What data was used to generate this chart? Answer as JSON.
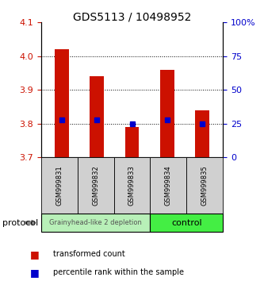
{
  "title": "GDS5113 / 10498952",
  "samples": [
    "GSM999831",
    "GSM999832",
    "GSM999833",
    "GSM999834",
    "GSM999835"
  ],
  "red_values": [
    4.02,
    3.94,
    3.79,
    3.96,
    3.84
  ],
  "blue_values": [
    3.812,
    3.812,
    3.8,
    3.812,
    3.8
  ],
  "bar_bottom": 3.7,
  "ylim_left": [
    3.7,
    4.1
  ],
  "ylim_right": [
    0,
    100
  ],
  "yticks_left": [
    3.7,
    3.8,
    3.9,
    4.0,
    4.1
  ],
  "yticks_right": [
    0,
    25,
    50,
    75,
    100
  ],
  "ytick_labels_right": [
    "0",
    "25",
    "50",
    "75",
    "100%"
  ],
  "bar_color": "#cc1100",
  "marker_color": "#0000cc",
  "groups": [
    {
      "label": "Grainyhead-like 2 depletion",
      "n_samples": 3,
      "color": "#b8f0b8"
    },
    {
      "label": "control",
      "n_samples": 2,
      "color": "#44ee44"
    }
  ],
  "group_row_label": "protocol",
  "legend_red": "transformed count",
  "legend_blue": "percentile rank within the sample",
  "bg_color": "#ffffff",
  "bar_color_red": "#cc1100",
  "marker_color_blue": "#0000cc",
  "left_tick_color": "#cc1100",
  "right_tick_color": "#0000cc"
}
